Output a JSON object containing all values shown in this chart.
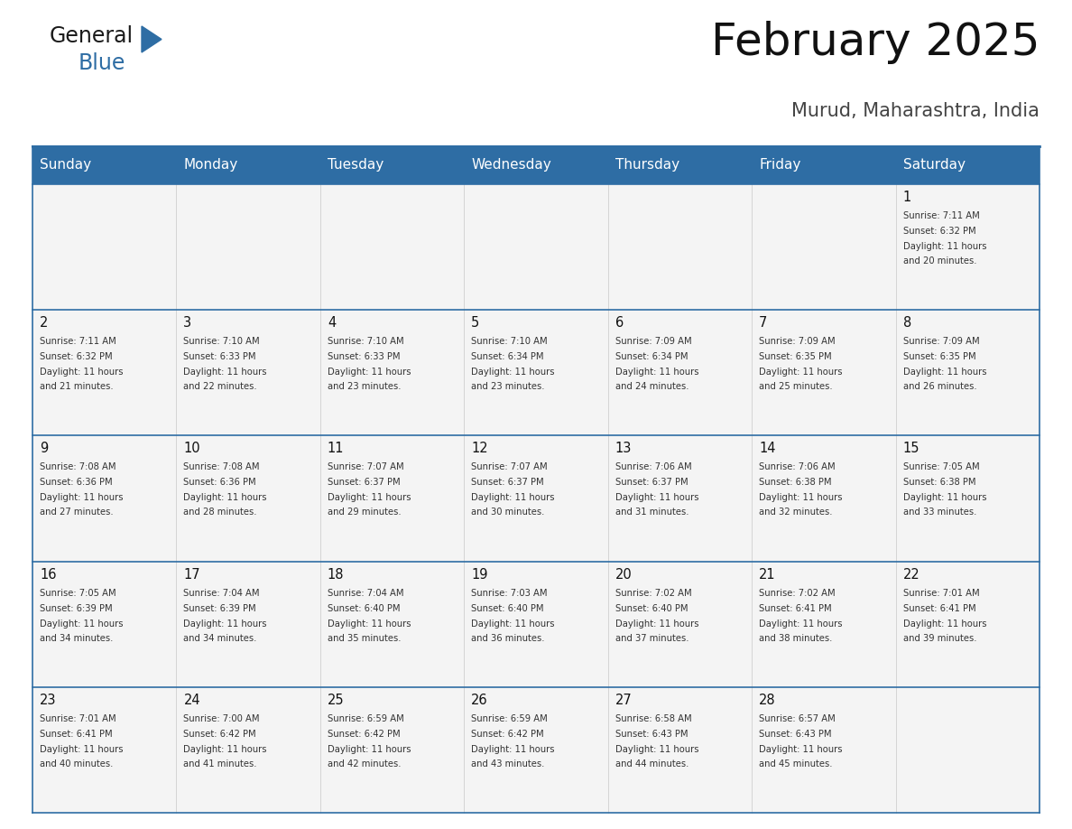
{
  "title": "February 2025",
  "subtitle": "Murud, Maharashtra, India",
  "days_of_week": [
    "Sunday",
    "Monday",
    "Tuesday",
    "Wednesday",
    "Thursday",
    "Friday",
    "Saturday"
  ],
  "header_bg": "#2E6DA4",
  "header_text": "#FFFFFF",
  "cell_bg": "#F4F4F4",
  "border_color": "#2E6DA4",
  "text_color": "#333333",
  "calendar": [
    [
      null,
      null,
      null,
      null,
      null,
      null,
      {
        "day": 1,
        "sunrise": "7:11 AM",
        "sunset": "6:32 PM",
        "daylight_line1": "Daylight: 11 hours",
        "daylight_line2": "and 20 minutes."
      }
    ],
    [
      {
        "day": 2,
        "sunrise": "7:11 AM",
        "sunset": "6:32 PM",
        "daylight_line1": "Daylight: 11 hours",
        "daylight_line2": "and 21 minutes."
      },
      {
        "day": 3,
        "sunrise": "7:10 AM",
        "sunset": "6:33 PM",
        "daylight_line1": "Daylight: 11 hours",
        "daylight_line2": "and 22 minutes."
      },
      {
        "day": 4,
        "sunrise": "7:10 AM",
        "sunset": "6:33 PM",
        "daylight_line1": "Daylight: 11 hours",
        "daylight_line2": "and 23 minutes."
      },
      {
        "day": 5,
        "sunrise": "7:10 AM",
        "sunset": "6:34 PM",
        "daylight_line1": "Daylight: 11 hours",
        "daylight_line2": "and 23 minutes."
      },
      {
        "day": 6,
        "sunrise": "7:09 AM",
        "sunset": "6:34 PM",
        "daylight_line1": "Daylight: 11 hours",
        "daylight_line2": "and 24 minutes."
      },
      {
        "day": 7,
        "sunrise": "7:09 AM",
        "sunset": "6:35 PM",
        "daylight_line1": "Daylight: 11 hours",
        "daylight_line2": "and 25 minutes."
      },
      {
        "day": 8,
        "sunrise": "7:09 AM",
        "sunset": "6:35 PM",
        "daylight_line1": "Daylight: 11 hours",
        "daylight_line2": "and 26 minutes."
      }
    ],
    [
      {
        "day": 9,
        "sunrise": "7:08 AM",
        "sunset": "6:36 PM",
        "daylight_line1": "Daylight: 11 hours",
        "daylight_line2": "and 27 minutes."
      },
      {
        "day": 10,
        "sunrise": "7:08 AM",
        "sunset": "6:36 PM",
        "daylight_line1": "Daylight: 11 hours",
        "daylight_line2": "and 28 minutes."
      },
      {
        "day": 11,
        "sunrise": "7:07 AM",
        "sunset": "6:37 PM",
        "daylight_line1": "Daylight: 11 hours",
        "daylight_line2": "and 29 minutes."
      },
      {
        "day": 12,
        "sunrise": "7:07 AM",
        "sunset": "6:37 PM",
        "daylight_line1": "Daylight: 11 hours",
        "daylight_line2": "and 30 minutes."
      },
      {
        "day": 13,
        "sunrise": "7:06 AM",
        "sunset": "6:37 PM",
        "daylight_line1": "Daylight: 11 hours",
        "daylight_line2": "and 31 minutes."
      },
      {
        "day": 14,
        "sunrise": "7:06 AM",
        "sunset": "6:38 PM",
        "daylight_line1": "Daylight: 11 hours",
        "daylight_line2": "and 32 minutes."
      },
      {
        "day": 15,
        "sunrise": "7:05 AM",
        "sunset": "6:38 PM",
        "daylight_line1": "Daylight: 11 hours",
        "daylight_line2": "and 33 minutes."
      }
    ],
    [
      {
        "day": 16,
        "sunrise": "7:05 AM",
        "sunset": "6:39 PM",
        "daylight_line1": "Daylight: 11 hours",
        "daylight_line2": "and 34 minutes."
      },
      {
        "day": 17,
        "sunrise": "7:04 AM",
        "sunset": "6:39 PM",
        "daylight_line1": "Daylight: 11 hours",
        "daylight_line2": "and 34 minutes."
      },
      {
        "day": 18,
        "sunrise": "7:04 AM",
        "sunset": "6:40 PM",
        "daylight_line1": "Daylight: 11 hours",
        "daylight_line2": "and 35 minutes."
      },
      {
        "day": 19,
        "sunrise": "7:03 AM",
        "sunset": "6:40 PM",
        "daylight_line1": "Daylight: 11 hours",
        "daylight_line2": "and 36 minutes."
      },
      {
        "day": 20,
        "sunrise": "7:02 AM",
        "sunset": "6:40 PM",
        "daylight_line1": "Daylight: 11 hours",
        "daylight_line2": "and 37 minutes."
      },
      {
        "day": 21,
        "sunrise": "7:02 AM",
        "sunset": "6:41 PM",
        "daylight_line1": "Daylight: 11 hours",
        "daylight_line2": "and 38 minutes."
      },
      {
        "day": 22,
        "sunrise": "7:01 AM",
        "sunset": "6:41 PM",
        "daylight_line1": "Daylight: 11 hours",
        "daylight_line2": "and 39 minutes."
      }
    ],
    [
      {
        "day": 23,
        "sunrise": "7:01 AM",
        "sunset": "6:41 PM",
        "daylight_line1": "Daylight: 11 hours",
        "daylight_line2": "and 40 minutes."
      },
      {
        "day": 24,
        "sunrise": "7:00 AM",
        "sunset": "6:42 PM",
        "daylight_line1": "Daylight: 11 hours",
        "daylight_line2": "and 41 minutes."
      },
      {
        "day": 25,
        "sunrise": "6:59 AM",
        "sunset": "6:42 PM",
        "daylight_line1": "Daylight: 11 hours",
        "daylight_line2": "and 42 minutes."
      },
      {
        "day": 26,
        "sunrise": "6:59 AM",
        "sunset": "6:42 PM",
        "daylight_line1": "Daylight: 11 hours",
        "daylight_line2": "and 43 minutes."
      },
      {
        "day": 27,
        "sunrise": "6:58 AM",
        "sunset": "6:43 PM",
        "daylight_line1": "Daylight: 11 hours",
        "daylight_line2": "and 44 minutes."
      },
      {
        "day": 28,
        "sunrise": "6:57 AM",
        "sunset": "6:43 PM",
        "daylight_line1": "Daylight: 11 hours",
        "daylight_line2": "and 45 minutes."
      },
      null
    ]
  ]
}
